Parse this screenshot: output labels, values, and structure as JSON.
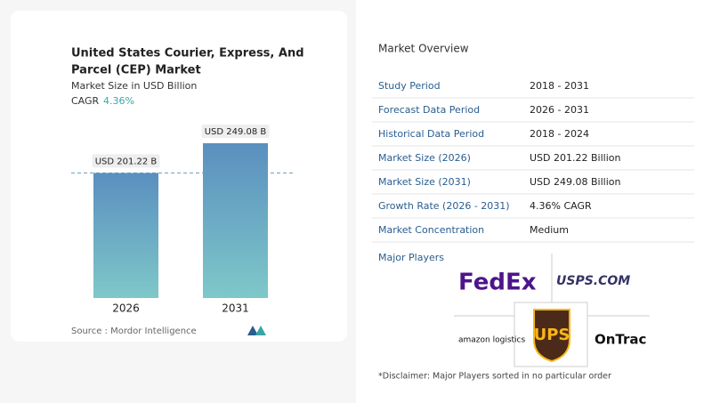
{
  "chart_data": {
    "type": "bar",
    "title": [
      "United States Courier, Express, And",
      "Parcel (CEP) Market"
    ],
    "subtitle": "Market Size in USD Billion",
    "cagr_label": "CAGR",
    "cagr": "4.36%",
    "categories": [
      "2026",
      "2031"
    ],
    "values": [
      201.22,
      249.08
    ],
    "value_labels": [
      "USD 201.22 B",
      "USD 249.08 B"
    ],
    "colors": [
      "#5a8fbf",
      "#7ec8c9"
    ],
    "source": "Source :  Mordor Intelligence"
  },
  "overview": {
    "title": "Market Overview",
    "rows": [
      [
        "Study Period",
        "2018 - 2031"
      ],
      [
        "Forecast Data Period",
        "2026 - 2031"
      ],
      [
        "Historical Data Period",
        "2018 - 2024"
      ],
      [
        "Market Size (2026)",
        "USD 201.22 Billion"
      ],
      [
        "Market Size (2031)",
        "USD 249.08 Billion"
      ],
      [
        "Growth Rate (2026 - 2031)",
        "4.36% CAGR"
      ],
      [
        "Market Concentration",
        "Medium"
      ]
    ],
    "players_title": "Major Players",
    "players": [
      "FedEx",
      "USPS.COM",
      "amazon logistics",
      "UPS",
      "OnTrac"
    ],
    "disclaimer": "*Disclaimer: Major Players sorted in no particular order"
  }
}
